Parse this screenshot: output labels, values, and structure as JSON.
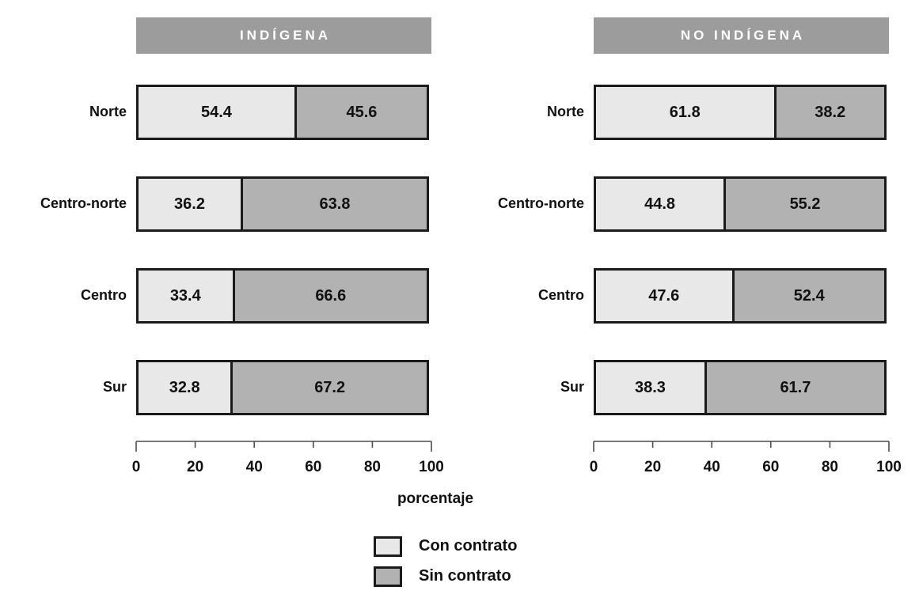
{
  "chart_data": {
    "type": "bar",
    "orientation": "horizontal",
    "stacked": true,
    "grid": false,
    "xlabel": "porcentaje",
    "xlim": [
      0,
      100
    ],
    "xticks": [
      0,
      20,
      40,
      60,
      80,
      100
    ],
    "legend_position": "bottom-center",
    "categories": [
      "Norte",
      "Centro-norte",
      "Centro",
      "Sur"
    ],
    "facets": [
      {
        "label": "INDÍGENA",
        "series": [
          {
            "name": "Con contrato",
            "values": [
              54.4,
              36.2,
              33.4,
              32.8
            ]
          },
          {
            "name": "Sin contrato",
            "values": [
              45.6,
              63.8,
              66.6,
              67.2
            ]
          }
        ]
      },
      {
        "label": "NO INDÍGENA",
        "series": [
          {
            "name": "Con contrato",
            "values": [
              61.8,
              44.8,
              47.6,
              38.3
            ]
          },
          {
            "name": "Sin contrato",
            "values": [
              38.2,
              55.2,
              52.4,
              61.7
            ]
          }
        ]
      }
    ],
    "legend": [
      {
        "label": "Con contrato",
        "color": "#e8e8e8"
      },
      {
        "label": "Sin contrato",
        "color": "#b2b2b2"
      }
    ]
  },
  "colors": {
    "facet_band": "#9c9c9c",
    "facet_band_text": "#ffffff",
    "con_contrato": "#e8e8e8",
    "sin_contrato": "#b2b2b2",
    "bar_border": "#1a1a1a",
    "axis": "#4d4d4d",
    "text": "#111111",
    "background": "#ffffff"
  }
}
